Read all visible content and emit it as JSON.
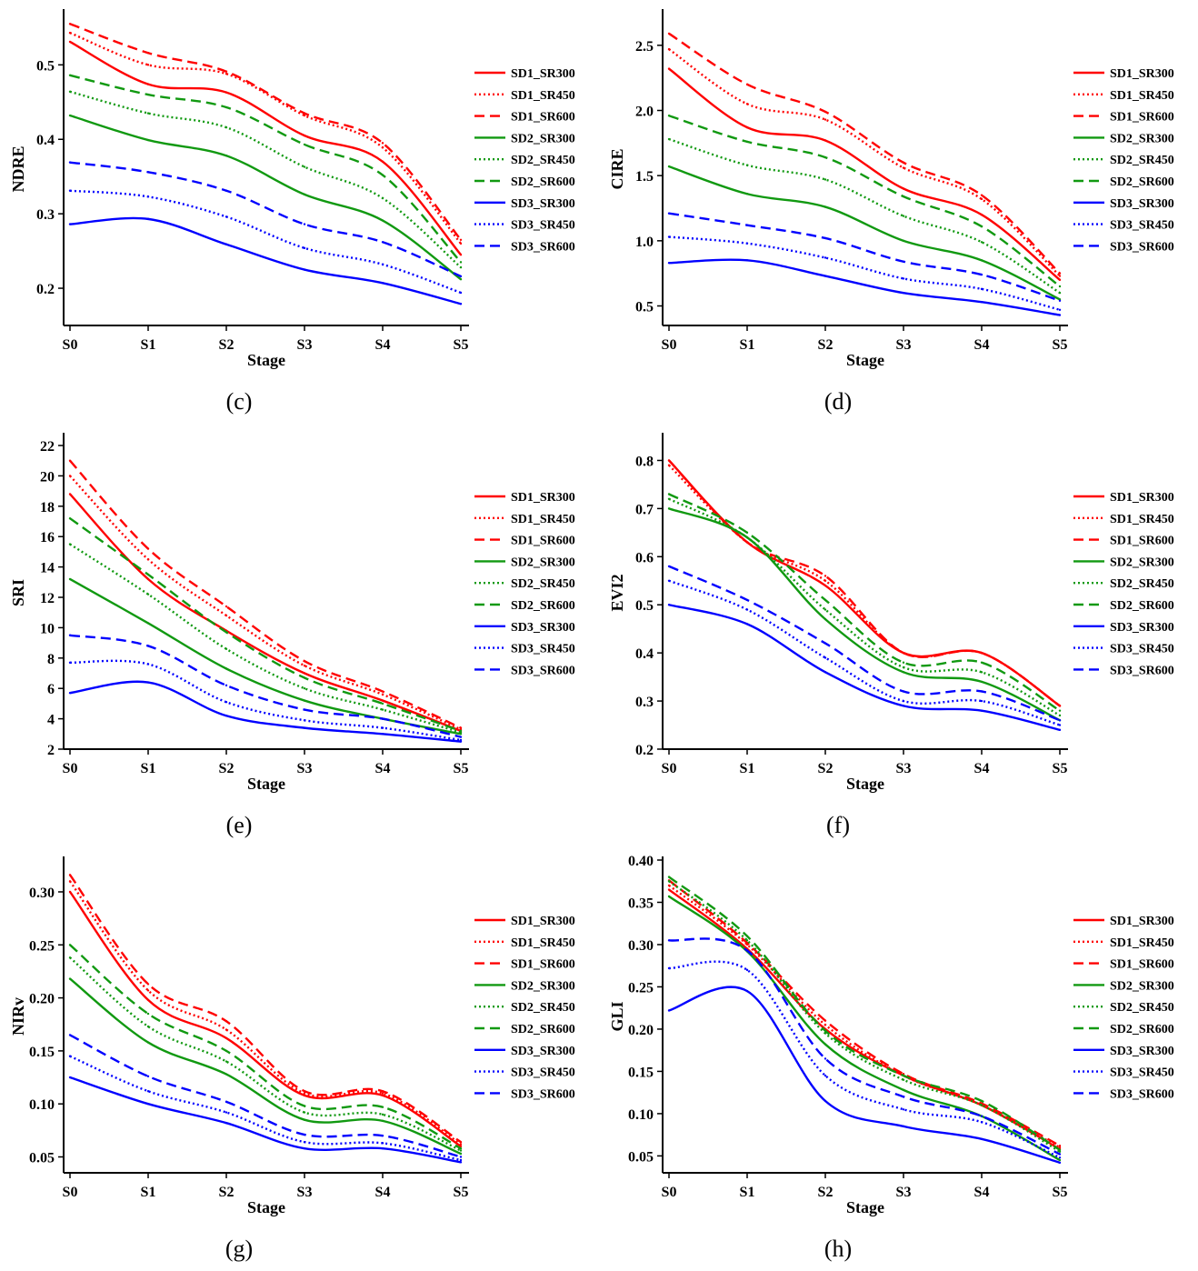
{
  "colors": {
    "SD1": "#ff0000",
    "SD2": "#119911",
    "SD3": "#0000ff"
  },
  "chart_data": [
    {
      "type": "line",
      "panel_label": "(c)",
      "ylabel": "NDRE",
      "xlabel": "Stage",
      "categories": [
        "S0",
        "S1",
        "S2",
        "S3",
        "S4",
        "S5"
      ],
      "ylim": [
        0.15,
        0.57
      ],
      "yticks": [
        "0.2",
        "0.3",
        "0.4",
        "0.5"
      ],
      "legend": "right",
      "series": [
        {
          "name": "SD1_SR300",
          "values": [
            0.531,
            0.474,
            0.463,
            0.405,
            0.37,
            0.245
          ]
        },
        {
          "name": "SD1_SR450",
          "values": [
            0.543,
            0.5,
            0.488,
            0.432,
            0.389,
            0.26
          ]
        },
        {
          "name": "SD1_SR600",
          "values": [
            0.555,
            0.516,
            0.491,
            0.435,
            0.395,
            0.265
          ]
        },
        {
          "name": "SD2_SR300",
          "values": [
            0.432,
            0.399,
            0.378,
            0.326,
            0.291,
            0.212
          ]
        },
        {
          "name": "SD2_SR450",
          "values": [
            0.464,
            0.435,
            0.416,
            0.363,
            0.321,
            0.228
          ]
        },
        {
          "name": "SD2_SR600",
          "values": [
            0.486,
            0.46,
            0.443,
            0.393,
            0.352,
            0.235
          ]
        },
        {
          "name": "SD3_SR300",
          "values": [
            0.286,
            0.293,
            0.259,
            0.225,
            0.207,
            0.179
          ]
        },
        {
          "name": "SD3_SR450",
          "values": [
            0.331,
            0.323,
            0.296,
            0.254,
            0.232,
            0.194
          ]
        },
        {
          "name": "SD3_SR600",
          "values": [
            0.369,
            0.356,
            0.331,
            0.286,
            0.262,
            0.216
          ]
        }
      ]
    },
    {
      "type": "line",
      "panel_label": "(d)",
      "ylabel": "CIRE",
      "xlabel": "Stage",
      "categories": [
        "S0",
        "S1",
        "S2",
        "S3",
        "S4",
        "S5"
      ],
      "ylim": [
        0.35,
        2.75
      ],
      "yticks": [
        "0.5",
        "1.0",
        "1.5",
        "2.0",
        "2.5"
      ],
      "legend": "right",
      "series": [
        {
          "name": "SD1_SR300",
          "values": [
            2.32,
            1.87,
            1.77,
            1.4,
            1.2,
            0.7
          ]
        },
        {
          "name": "SD1_SR450",
          "values": [
            2.47,
            2.05,
            1.93,
            1.56,
            1.32,
            0.73
          ]
        },
        {
          "name": "SD1_SR600",
          "values": [
            2.59,
            2.2,
            1.99,
            1.6,
            1.35,
            0.75
          ]
        },
        {
          "name": "SD2_SR300",
          "values": [
            1.57,
            1.36,
            1.26,
            1.0,
            0.85,
            0.55
          ]
        },
        {
          "name": "SD2_SR450",
          "values": [
            1.78,
            1.58,
            1.47,
            1.19,
            0.99,
            0.6
          ]
        },
        {
          "name": "SD2_SR600",
          "values": [
            1.96,
            1.76,
            1.64,
            1.34,
            1.11,
            0.65
          ]
        },
        {
          "name": "SD3_SR300",
          "values": [
            0.83,
            0.85,
            0.73,
            0.6,
            0.53,
            0.43
          ]
        },
        {
          "name": "SD3_SR450",
          "values": [
            1.03,
            0.98,
            0.87,
            0.71,
            0.63,
            0.47
          ]
        },
        {
          "name": "SD3_SR600",
          "values": [
            1.21,
            1.12,
            1.02,
            0.84,
            0.74,
            0.54
          ]
        }
      ]
    },
    {
      "type": "line",
      "panel_label": "(e)",
      "ylabel": "SRI",
      "xlabel": "Stage",
      "categories": [
        "S0",
        "S1",
        "S2",
        "S3",
        "S4",
        "S5"
      ],
      "ylim": [
        2,
        22.6
      ],
      "yticks": [
        "2",
        "4",
        "6",
        "8",
        "10",
        "12",
        "14",
        "16",
        "18",
        "20",
        "22"
      ],
      "legend": "right",
      "series": [
        {
          "name": "SD1_SR300",
          "values": [
            18.8,
            13.2,
            9.8,
            7.0,
            5.2,
            3.2
          ]
        },
        {
          "name": "SD1_SR450",
          "values": [
            20.0,
            14.5,
            10.8,
            7.5,
            5.6,
            3.3
          ]
        },
        {
          "name": "SD1_SR600",
          "values": [
            21.0,
            15.2,
            11.4,
            7.8,
            5.8,
            3.4
          ]
        },
        {
          "name": "SD2_SR300",
          "values": [
            13.2,
            10.3,
            7.3,
            5.2,
            4.0,
            3.0
          ]
        },
        {
          "name": "SD2_SR450",
          "values": [
            15.5,
            12.2,
            8.6,
            6.0,
            4.6,
            3.1
          ]
        },
        {
          "name": "SD2_SR600",
          "values": [
            17.2,
            13.5,
            9.7,
            6.7,
            5.0,
            3.2
          ]
        },
        {
          "name": "SD3_SR300",
          "values": [
            5.7,
            6.4,
            4.2,
            3.4,
            3.0,
            2.5
          ]
        },
        {
          "name": "SD3_SR450",
          "values": [
            7.7,
            7.6,
            5.1,
            3.9,
            3.4,
            2.6
          ]
        },
        {
          "name": "SD3_SR600",
          "values": [
            9.5,
            8.8,
            6.2,
            4.6,
            4.0,
            2.8
          ]
        }
      ]
    },
    {
      "type": "line",
      "panel_label": "(f)",
      "ylabel": "EVI2",
      "xlabel": "Stage",
      "categories": [
        "S0",
        "S1",
        "S2",
        "S3",
        "S4",
        "S5"
      ],
      "ylim": [
        0.2,
        0.85
      ],
      "yticks": [
        "0.2",
        "0.3",
        "0.4",
        "0.5",
        "0.6",
        "0.7",
        "0.8"
      ],
      "legend": "right",
      "series": [
        {
          "name": "SD1_SR300",
          "values": [
            0.8,
            0.63,
            0.54,
            0.4,
            0.4,
            0.29
          ]
        },
        {
          "name": "SD1_SR450",
          "values": [
            0.79,
            0.63,
            0.55,
            0.4,
            0.4,
            0.29
          ]
        },
        {
          "name": "SD1_SR600",
          "values": [
            0.8,
            0.63,
            0.56,
            0.4,
            0.4,
            0.29
          ]
        },
        {
          "name": "SD2_SR300",
          "values": [
            0.7,
            0.64,
            0.47,
            0.36,
            0.34,
            0.26
          ]
        },
        {
          "name": "SD2_SR450",
          "values": [
            0.72,
            0.64,
            0.49,
            0.37,
            0.36,
            0.27
          ]
        },
        {
          "name": "SD2_SR600",
          "values": [
            0.73,
            0.65,
            0.51,
            0.38,
            0.38,
            0.28
          ]
        },
        {
          "name": "SD3_SR300",
          "values": [
            0.5,
            0.46,
            0.36,
            0.29,
            0.28,
            0.24
          ]
        },
        {
          "name": "SD3_SR450",
          "values": [
            0.55,
            0.49,
            0.39,
            0.3,
            0.3,
            0.25
          ]
        },
        {
          "name": "SD3_SR600",
          "values": [
            0.58,
            0.51,
            0.42,
            0.32,
            0.32,
            0.26
          ]
        }
      ]
    },
    {
      "type": "line",
      "panel_label": "(g)",
      "ylabel": "NIRv",
      "xlabel": "Stage",
      "categories": [
        "S0",
        "S1",
        "S2",
        "S3",
        "S4",
        "S5"
      ],
      "ylim": [
        0.035,
        0.33
      ],
      "yticks": [
        "0.05",
        "0.10",
        "0.15",
        "0.20",
        "0.25",
        "0.30"
      ],
      "legend": "right",
      "series": [
        {
          "name": "SD1_SR300",
          "values": [
            0.3,
            0.198,
            0.162,
            0.108,
            0.108,
            0.06
          ]
        },
        {
          "name": "SD1_SR450",
          "values": [
            0.31,
            0.207,
            0.17,
            0.11,
            0.11,
            0.062
          ]
        },
        {
          "name": "SD1_SR600",
          "values": [
            0.316,
            0.213,
            0.178,
            0.112,
            0.112,
            0.064
          ]
        },
        {
          "name": "SD2_SR300",
          "values": [
            0.218,
            0.158,
            0.128,
            0.085,
            0.084,
            0.053
          ]
        },
        {
          "name": "SD2_SR450",
          "values": [
            0.238,
            0.173,
            0.14,
            0.092,
            0.09,
            0.056
          ]
        },
        {
          "name": "SD2_SR600",
          "values": [
            0.25,
            0.185,
            0.15,
            0.098,
            0.097,
            0.058
          ]
        },
        {
          "name": "SD3_SR300",
          "values": [
            0.125,
            0.1,
            0.082,
            0.058,
            0.058,
            0.045
          ]
        },
        {
          "name": "SD3_SR450",
          "values": [
            0.145,
            0.112,
            0.092,
            0.064,
            0.063,
            0.047
          ]
        },
        {
          "name": "SD3_SR600",
          "values": [
            0.165,
            0.126,
            0.102,
            0.071,
            0.07,
            0.05
          ]
        }
      ]
    },
    {
      "type": "line",
      "panel_label": "(h)",
      "ylabel": "GLI",
      "xlabel": "Stage",
      "categories": [
        "S0",
        "S1",
        "S2",
        "S3",
        "S4",
        "S5"
      ],
      "ylim": [
        0.03,
        0.4
      ],
      "yticks": [
        "0.05",
        "0.10",
        "0.15",
        "0.20",
        "0.25",
        "0.30",
        "0.35",
        "0.40"
      ],
      "legend": "right",
      "series": [
        {
          "name": "SD1_SR300",
          "values": [
            0.365,
            0.295,
            0.2,
            0.145,
            0.11,
            0.058
          ]
        },
        {
          "name": "SD1_SR450",
          "values": [
            0.37,
            0.3,
            0.205,
            0.145,
            0.11,
            0.06
          ]
        },
        {
          "name": "SD1_SR600",
          "values": [
            0.376,
            0.302,
            0.21,
            0.147,
            0.112,
            0.062
          ]
        },
        {
          "name": "SD2_SR300",
          "values": [
            0.357,
            0.292,
            0.182,
            0.128,
            0.097,
            0.045
          ]
        },
        {
          "name": "SD2_SR450",
          "values": [
            0.375,
            0.305,
            0.195,
            0.14,
            0.11,
            0.055
          ]
        },
        {
          "name": "SD2_SR600",
          "values": [
            0.38,
            0.31,
            0.198,
            0.145,
            0.115,
            0.057
          ]
        },
        {
          "name": "SD3_SR300",
          "values": [
            0.222,
            0.245,
            0.115,
            0.085,
            0.07,
            0.042
          ]
        },
        {
          "name": "SD3_SR450",
          "values": [
            0.272,
            0.27,
            0.145,
            0.105,
            0.09,
            0.048
          ]
        },
        {
          "name": "SD3_SR600",
          "values": [
            0.305,
            0.293,
            0.165,
            0.12,
            0.097,
            0.052
          ]
        }
      ]
    }
  ]
}
